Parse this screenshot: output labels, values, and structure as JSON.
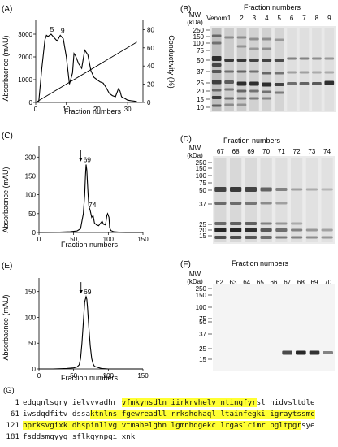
{
  "panels": {
    "a": {
      "label": "(A)",
      "ylabel": "Absorbacnce (mAU)",
      "y2label": "Conductivity (%)",
      "xlabel": "Fraction numbers",
      "peak_labels": [
        "5",
        "9"
      ]
    },
    "b": {
      "label": "(B)",
      "header": "Fraction numbers",
      "mw_title": [
        "MW",
        "(kDa)"
      ],
      "mw_ticks": [
        "250",
        "150",
        "100",
        "75",
        "50",
        "37",
        "25",
        "20",
        "15",
        "10"
      ],
      "lanes": [
        "Venom",
        "1",
        "2",
        "3",
        "4",
        "5",
        "6",
        "7",
        "8",
        "9"
      ]
    },
    "c": {
      "label": "(C)",
      "ylabel": "Absorbacnce (mAU)",
      "xlabel": "Fraction numbers",
      "peak_labels": [
        "69",
        "74"
      ]
    },
    "d": {
      "label": "(D)",
      "header": "Fraction numbers",
      "mw_title": [
        "MW",
        "(kDa)"
      ],
      "mw_ticks": [
        "250",
        "150",
        "100",
        "75",
        "50",
        "37",
        "25",
        "20",
        "15"
      ],
      "lanes": [
        "67",
        "68",
        "69",
        "70",
        "71",
        "72",
        "73",
        "74"
      ]
    },
    "e": {
      "label": "(E)",
      "ylabel": "Absorbacnce (mAU)",
      "xlabel": "Fraction numbers",
      "peak_labels": [
        "69"
      ]
    },
    "f": {
      "label": "(F)",
      "header": "Fraction numbers",
      "mw_title": [
        "MW",
        "(kDa)"
      ],
      "mw_ticks": [
        "250",
        "150",
        "100",
        "75",
        "50",
        "37",
        "25",
        "15"
      ],
      "lanes": [
        "62",
        "63",
        "64",
        "65",
        "66",
        "67",
        "68",
        "69",
        "70"
      ]
    },
    "g": {
      "label": "(G)",
      "lines": [
        {
          "num": "1",
          "segments": [
            {
              "text": "edqqnlsqry ielvvvadhr ",
              "hl": false
            },
            {
              "text": "vfmkynsdln iirkrvhelv ntingfyr",
              "hl": true
            },
            {
              "text": "sl nidvsltdle",
              "hl": false
            }
          ]
        },
        {
          "num": "61",
          "segments": [
            {
              "text": "iwsdqdfitv dssa",
              "hl": false
            },
            {
              "text": "ktnlns fgewreadll rrkshdhaql ltainfegki igraytssmc",
              "hl": true
            }
          ]
        },
        {
          "num": "121",
          "segments": [
            {
              "text": "nprksvgixk dhspinllvg vtmahelghn lgmnhdgekc lrgaslcimr pgltpgr",
              "hl": true
            },
            {
              "text": "sye",
              "hl": false
            }
          ]
        },
        {
          "num": "181",
          "segments": [
            {
              "text": "fsddsmgyyq sflkqynpqi xnk",
              "hl": false
            }
          ]
        }
      ]
    }
  },
  "chart_data": [
    {
      "panel": "A",
      "type": "line",
      "xlabel": "Fraction numbers",
      "ylabel": "Absorbacnce (mAU)",
      "xlim": [
        0,
        35
      ],
      "ylim": [
        0,
        3500
      ],
      "xticks": [
        0,
        10,
        20,
        30
      ],
      "yticks": [
        0,
        1000,
        2000,
        3000
      ],
      "series": [
        {
          "x": [
            0,
            1,
            2,
            3,
            3.5,
            4,
            5,
            6,
            7,
            8,
            9,
            10,
            11,
            12,
            12.5,
            13,
            14,
            15,
            16,
            17,
            18,
            19,
            20,
            21,
            22,
            23,
            24,
            25,
            26,
            27,
            27.5,
            28,
            29,
            30,
            31,
            32,
            33
          ],
          "y": [
            0,
            60,
            1500,
            2750,
            2950,
            2900,
            3000,
            2850,
            2700,
            2950,
            2800,
            2000,
            800,
            1300,
            2150,
            2050,
            1700,
            1500,
            2300,
            2100,
            1400,
            1100,
            1000,
            900,
            850,
            650,
            400,
            300,
            250,
            600,
            500,
            250,
            180,
            100,
            80,
            60,
            40
          ]
        },
        {
          "x": [
            0,
            33
          ],
          "y": [
            0,
            2650
          ]
        }
      ],
      "y2label": "Conductivity (%)",
      "y2lim": [
        0,
        87.5
      ],
      "y2ticks": [
        0,
        20,
        40,
        60,
        80
      ],
      "annotations": [
        "5",
        "9"
      ]
    },
    {
      "panel": "C",
      "type": "line",
      "xlabel": "Fraction numbers",
      "ylabel": "Absorbacnce (mAU)",
      "xlim": [
        0,
        150
      ],
      "ylim": [
        0,
        220
      ],
      "xticks": [
        0,
        50,
        100,
        150
      ],
      "yticks": [
        0,
        50,
        100,
        150,
        200
      ],
      "series": [
        {
          "x": [
            0,
            30,
            45,
            55,
            60,
            64,
            66,
            67,
            68,
            69,
            70,
            71,
            72,
            74,
            76,
            78,
            80,
            83,
            86,
            89,
            91,
            93,
            96,
            98,
            99,
            101,
            102,
            104,
            108,
            115,
            125,
            150
          ],
          "y": [
            0,
            1,
            2,
            4,
            10,
            50,
            100,
            150,
            180,
            165,
            130,
            95,
            70,
            58,
            40,
            45,
            25,
            20,
            18,
            25,
            30,
            22,
            20,
            45,
            50,
            40,
            12,
            5,
            2,
            1,
            0,
            0
          ]
        }
      ],
      "annotations": [
        "69",
        "74"
      ]
    },
    {
      "panel": "E",
      "type": "line",
      "xlabel": "Fraction numbers",
      "ylabel": "Absorbacnce (mAU)",
      "xlim": [
        0,
        150
      ],
      "ylim": [
        0,
        170
      ],
      "xticks": [
        0,
        50,
        100,
        150
      ],
      "yticks": [
        0,
        50,
        100,
        150
      ],
      "series": [
        {
          "x": [
            0,
            20,
            40,
            50,
            55,
            58,
            60,
            62,
            64,
            66,
            68,
            69,
            70,
            72,
            74,
            76,
            78,
            80,
            85,
            90,
            100,
            150
          ],
          "y": [
            0,
            0,
            1,
            2,
            4,
            8,
            20,
            50,
            90,
            130,
            140,
            135,
            120,
            80,
            45,
            20,
            10,
            5,
            3,
            1,
            0,
            0
          ]
        }
      ],
      "annotations": [
        "69"
      ]
    }
  ]
}
